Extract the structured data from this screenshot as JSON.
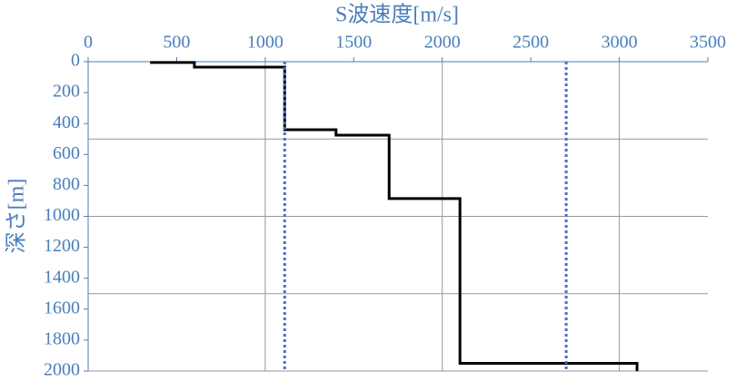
{
  "chart_data": {
    "type": "line",
    "title": "S波速度[m/s]",
    "y_label": "深さ[m]",
    "xlim": [
      0,
      3500
    ],
    "xticks": [
      0,
      500,
      1000,
      1500,
      2000,
      2500,
      3000,
      3500
    ],
    "ylim": [
      0,
      2000
    ],
    "yticks": [
      0,
      200,
      400,
      600,
      800,
      1000,
      1200,
      1400,
      1600,
      1800,
      2000
    ],
    "y_inverted": true,
    "x_axis_position": "top",
    "x_grid": [
      1000,
      2000,
      3000
    ],
    "y_grid": [
      500,
      1000,
      1500,
      2000
    ],
    "series": [
      {
        "color": "#000000",
        "line_style": "solid",
        "x": [
          350,
          600,
          600,
          1110,
          1110,
          1400,
          1400,
          1700,
          1700,
          2100,
          2100,
          3100,
          3100
        ],
        "values": [
          5,
          5,
          35,
          35,
          440,
          440,
          475,
          475,
          885,
          885,
          1950,
          1950,
          2000
        ]
      },
      {
        "color": "#4472c4",
        "line_style": "dotted",
        "x": [
          1110,
          1110
        ],
        "values": [
          0,
          2000
        ]
      },
      {
        "color": "#4472c4",
        "line_style": "dotted",
        "x": [
          2700,
          2700
        ],
        "values": [
          0,
          2000
        ]
      }
    ]
  }
}
